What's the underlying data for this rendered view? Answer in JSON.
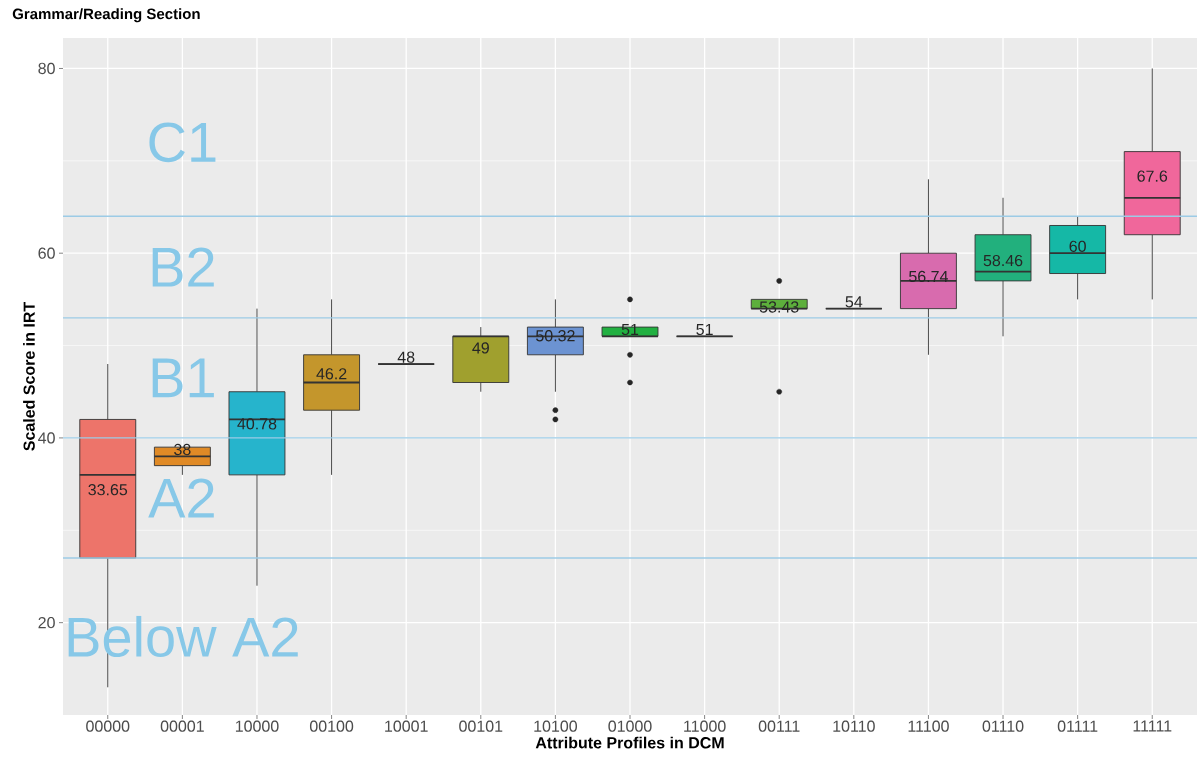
{
  "chart_data": {
    "type": "box",
    "title": "Grammar/Reading Section",
    "xlabel": "Attribute Profiles in DCM",
    "ylabel": "Scaled Score in IRT",
    "categories": [
      "00000",
      "00001",
      "10000",
      "00100",
      "10001",
      "00101",
      "10100",
      "01000",
      "11000",
      "00111",
      "10110",
      "11100",
      "01110",
      "01111",
      "11111"
    ],
    "boxes": [
      {
        "low": 13,
        "q1": 27,
        "median": 36,
        "q3": 42,
        "high": 48
      },
      {
        "low": 36,
        "q1": 37,
        "median": 38,
        "q3": 39,
        "high": 39
      },
      {
        "low": 24,
        "q1": 36,
        "median": 42,
        "q3": 45,
        "high": 54
      },
      {
        "low": 36,
        "q1": 43,
        "median": 46,
        "q3": 49,
        "high": 55
      },
      {
        "low": 48,
        "q1": 48,
        "median": 48,
        "q3": 48,
        "high": 48
      },
      {
        "low": 45,
        "q1": 46,
        "median": 51,
        "q3": 51,
        "high": 52
      },
      {
        "low": 45,
        "q1": 49,
        "median": 51,
        "q3": 52,
        "high": 55,
        "outliers": [
          43,
          42
        ]
      },
      {
        "low": 51,
        "q1": 51,
        "median": 51,
        "q3": 52,
        "high": 52,
        "outliers": [
          55,
          49,
          46
        ]
      },
      {
        "low": 51,
        "q1": 51,
        "median": 51,
        "q3": 51,
        "high": 51
      },
      {
        "low": 54,
        "q1": 54,
        "median": 54,
        "q3": 55,
        "high": 55,
        "outliers": [
          57,
          45
        ]
      },
      {
        "low": 54,
        "q1": 54,
        "median": 54,
        "q3": 54,
        "high": 54
      },
      {
        "low": 49,
        "q1": 54,
        "median": 57,
        "q3": 60,
        "high": 68
      },
      {
        "low": 51,
        "q1": 57,
        "median": 58,
        "q3": 62,
        "high": 66
      },
      {
        "low": 55,
        "q1": 57.8,
        "median": 60,
        "q3": 63,
        "high": 64
      },
      {
        "low": 55,
        "q1": 62,
        "median": 66,
        "q3": 71,
        "high": 80
      }
    ],
    "colors": [
      "#ED746A",
      "#E08A26",
      "#26B4CC",
      "#C4962C",
      null,
      "#A0A02E",
      "#6C93D2",
      "#22B041",
      null,
      "#5DAF3C",
      null,
      "#D86BAE",
      "#22B07D",
      "#15B8A6",
      "#F0679B"
    ],
    "value_labels": [
      "33.65",
      "38",
      "40.78",
      "46.2",
      "48",
      "49",
      "50.32",
      "51",
      "51",
      "53.43",
      "54",
      "56.74",
      "58.46",
      "60",
      "67.6"
    ],
    "ylim": [
      10,
      83.3
    ],
    "yticks": [
      20,
      40,
      60,
      80
    ],
    "grid": true,
    "ref_lines": [
      {
        "axis": "y",
        "value": 27,
        "color": "#9CCBE6"
      },
      {
        "axis": "y",
        "value": 40,
        "color": "#9CCBE6"
      },
      {
        "axis": "y",
        "value": 53,
        "color": "#9CCBE6"
      },
      {
        "axis": "y",
        "value": 64,
        "color": "#9CCBE6"
      }
    ],
    "annotations": [
      "C1",
      "B2",
      "B1",
      "A2",
      "Below A2"
    ]
  }
}
